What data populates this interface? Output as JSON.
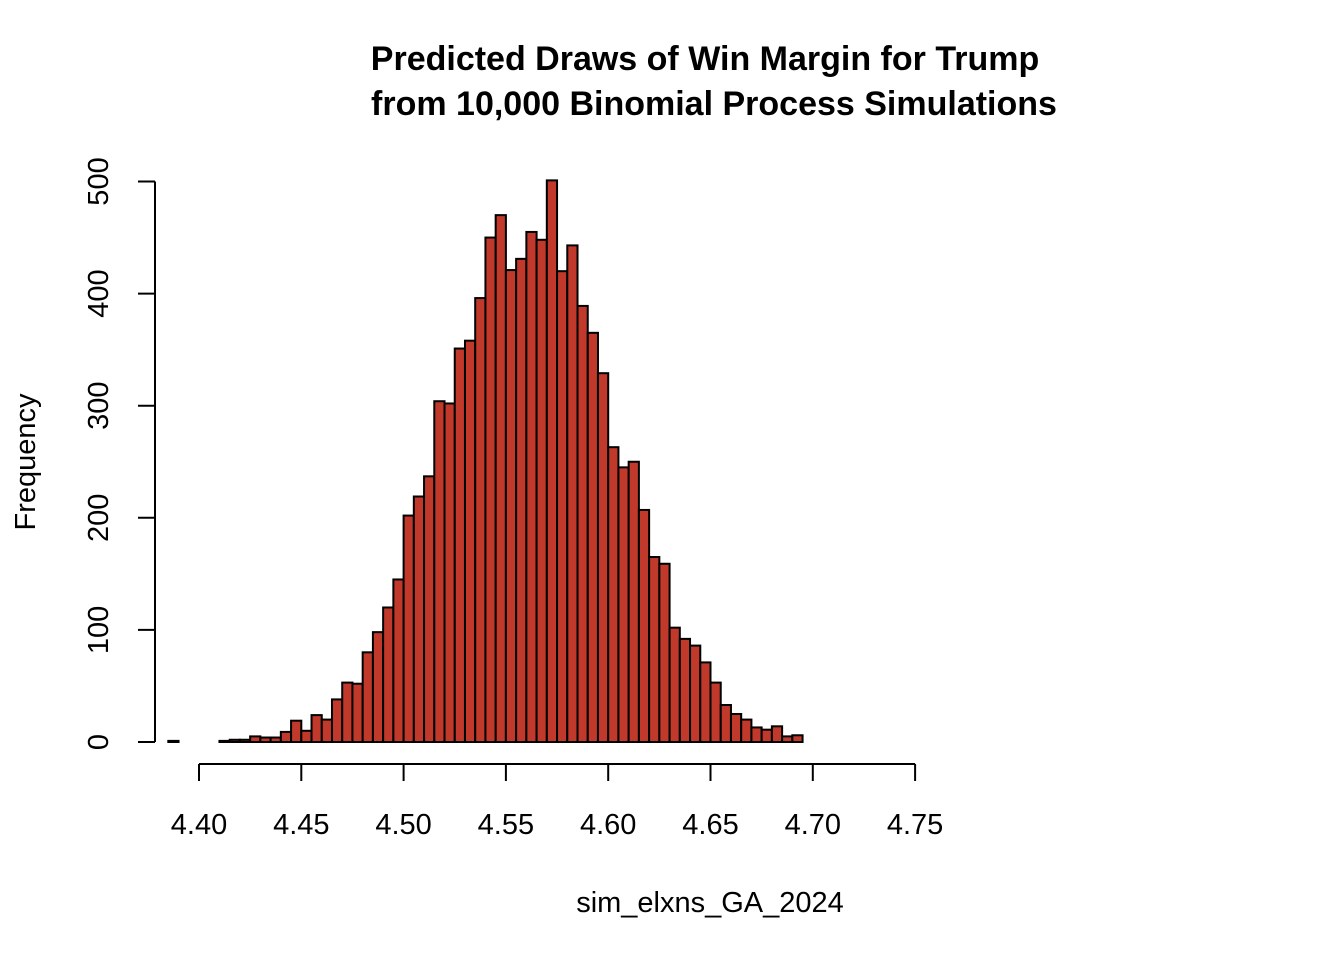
{
  "chart_data": {
    "type": "bar",
    "subtype": "histogram",
    "title_lines": [
      "Predicted Draws of Win Margin for Trump",
      "from 10,000 Binomial Process Simulations"
    ],
    "xlabel": "sim_elxns_GA_2024",
    "ylabel": "Frequency",
    "bar_color": "#C0392B",
    "bar_edge_color": "#000000",
    "bin_width": 0.005,
    "first_bin_start": 4.385,
    "values": [
      1,
      0,
      0,
      0,
      0,
      1,
      2,
      2,
      5,
      4,
      4,
      9,
      19,
      10,
      24,
      20,
      38,
      53,
      52,
      80,
      98,
      120,
      145,
      202,
      219,
      237,
      304,
      302,
      351,
      358,
      396,
      450,
      470,
      421,
      431,
      455,
      448,
      501,
      420,
      443,
      389,
      365,
      329,
      263,
      245,
      250,
      207,
      165,
      159,
      102,
      92,
      86,
      71,
      53,
      33,
      25,
      20,
      13,
      11,
      14,
      5,
      6,
      0,
      0,
      0,
      0,
      0,
      0,
      0,
      0,
      0,
      0,
      0
    ],
    "x_ticks": [
      "4.40",
      "4.45",
      "4.50",
      "4.55",
      "4.60",
      "4.65",
      "4.70",
      "4.75"
    ],
    "y_ticks": [
      "0",
      "100",
      "200",
      "300",
      "400",
      "500"
    ],
    "xlim": [
      4.385,
      4.75
    ],
    "ylim": [
      0,
      500
    ],
    "grid": false,
    "legend": "none"
  }
}
